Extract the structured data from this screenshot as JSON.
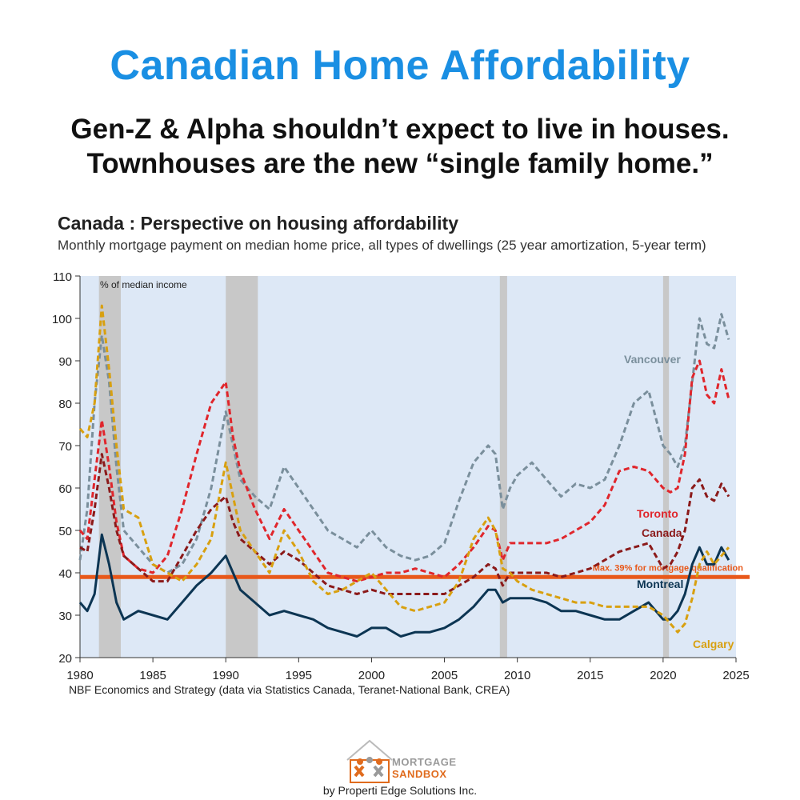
{
  "headline": "Canadian Home Affordability",
  "subheadline_line1": "Gen-Z & Alpha shouldn’t expect to live in houses.",
  "subheadline_line2": "Townhouses are the new “single family home.”",
  "source": "NBF Economics and Strategy (data via Statistics Canada, Teranet-National Bank, CREA)",
  "logo": {
    "line1": "MORTGAGE",
    "line2": "SANDBOX",
    "byline": "by Properti Edge Solutions Inc."
  },
  "colors": {
    "headline": "#1a8fe3",
    "plot_bg": "#dde8f6",
    "recession": "#c8c8c8",
    "threshold": "#e8581a",
    "vancouver": "#7a8f9c",
    "toronto": "#e0262c",
    "canada": "#8b1a1a",
    "montreal": "#0c3553",
    "calgary": "#d8a010"
  },
  "chart_data": {
    "type": "line",
    "title": "Canada : Perspective on housing affordability",
    "subtitle": "Monthly mortgage payment on median home price, all types of dwellings (25 year amortization, 5-year term)",
    "ylabel_note": "% of median income",
    "xlim": [
      1980,
      2025
    ],
    "ylim": [
      20,
      110
    ],
    "x_ticks": [
      1980,
      1985,
      1990,
      1995,
      2000,
      2005,
      2010,
      2015,
      2020,
      2025
    ],
    "y_ticks": [
      20,
      30,
      40,
      50,
      60,
      70,
      80,
      90,
      100,
      110
    ],
    "grid": false,
    "recessions": [
      [
        1981.3,
        1982.8
      ],
      [
        1990.0,
        1992.2
      ],
      [
        2008.8,
        2009.3
      ],
      [
        2020.0,
        2020.4
      ]
    ],
    "threshold": {
      "value": 39,
      "label": "Max. 39% for mortgage qualification"
    },
    "series": [
      {
        "name": "Vancouver",
        "color_key": "vancouver",
        "dashed": true,
        "x": [
          1980,
          1980.5,
          1981,
          1981.5,
          1982,
          1982.5,
          1983,
          1984,
          1985,
          1986,
          1987,
          1988,
          1989,
          1990,
          1990.5,
          1991,
          1992,
          1993,
          1994,
          1995,
          1996,
          1997,
          1998,
          1999,
          2000,
          2001,
          2002,
          2003,
          2004,
          2005,
          2006,
          2007,
          2008,
          2008.5,
          2009,
          2009.5,
          2010,
          2011,
          2012,
          2013,
          2014,
          2015,
          2016,
          2017,
          2018,
          2019,
          2020,
          2020.5,
          2021,
          2021.5,
          2022,
          2022.5,
          2023,
          2023.5,
          2024,
          2024.5
        ],
        "y": [
          43,
          55,
          80,
          96,
          85,
          65,
          50,
          46,
          42,
          40,
          42,
          48,
          60,
          78,
          70,
          62,
          58,
          55,
          65,
          60,
          55,
          50,
          48,
          46,
          50,
          46,
          44,
          43,
          44,
          47,
          57,
          66,
          70,
          68,
          55,
          60,
          63,
          66,
          62,
          58,
          61,
          60,
          62,
          70,
          80,
          83,
          70,
          68,
          65,
          70,
          85,
          100,
          94,
          93,
          101,
          95
        ]
      },
      {
        "name": "Toronto",
        "color_key": "toronto",
        "dashed": true,
        "x": [
          1980,
          1980.5,
          1981,
          1981.5,
          1982,
          1982.5,
          1983,
          1984,
          1985,
          1986,
          1987,
          1988,
          1989,
          1990,
          1990.5,
          1991,
          1992,
          1993,
          1994,
          1995,
          1996,
          1997,
          1998,
          1999,
          2000,
          2001,
          2002,
          2003,
          2004,
          2005,
          2006,
          2007,
          2008,
          2008.5,
          2009,
          2009.5,
          2010,
          2011,
          2012,
          2013,
          2014,
          2015,
          2016,
          2017,
          2018,
          2019,
          2020,
          2020.5,
          2021,
          2021.5,
          2022,
          2022.5,
          2023,
          2023.5,
          2024,
          2024.5
        ],
        "y": [
          50,
          48,
          62,
          76,
          65,
          52,
          44,
          41,
          40,
          44,
          55,
          68,
          80,
          85,
          72,
          64,
          55,
          48,
          55,
          50,
          45,
          40,
          39,
          38,
          39,
          40,
          40,
          41,
          40,
          39,
          42,
          46,
          51,
          50,
          43,
          47,
          47,
          47,
          47,
          48,
          50,
          52,
          56,
          64,
          65,
          64,
          60,
          59,
          60,
          68,
          86,
          90,
          82,
          80,
          88,
          81
        ]
      },
      {
        "name": "Canada",
        "color_key": "canada",
        "dashed": true,
        "x": [
          1980,
          1980.5,
          1981,
          1981.5,
          1982,
          1982.5,
          1983,
          1984,
          1985,
          1986,
          1987,
          1988,
          1989,
          1990,
          1990.5,
          1991,
          1992,
          1993,
          1994,
          1995,
          1996,
          1997,
          1998,
          1999,
          2000,
          2001,
          2002,
          2003,
          2004,
          2005,
          2006,
          2007,
          2008,
          2008.5,
          2009,
          2009.5,
          2010,
          2011,
          2012,
          2013,
          2014,
          2015,
          2016,
          2017,
          2018,
          2019,
          2020,
          2020.5,
          2021,
          2021.5,
          2022,
          2022.5,
          2023,
          2023.5,
          2024,
          2024.5
        ],
        "y": [
          46,
          45,
          55,
          68,
          60,
          50,
          44,
          41,
          38,
          38,
          44,
          50,
          55,
          58,
          52,
          48,
          45,
          42,
          45,
          43,
          40,
          37,
          36,
          35,
          36,
          35,
          35,
          35,
          35,
          35,
          37,
          39,
          42,
          41,
          37,
          40,
          40,
          40,
          40,
          39,
          40,
          41,
          43,
          45,
          46,
          47,
          41,
          42,
          45,
          50,
          60,
          62,
          58,
          57,
          61,
          58
        ]
      },
      {
        "name": "Montreal",
        "color_key": "montreal",
        "dashed": false,
        "x": [
          1980,
          1980.5,
          1981,
          1981.5,
          1982,
          1982.5,
          1983,
          1984,
          1985,
          1986,
          1987,
          1988,
          1989,
          1990,
          1990.5,
          1991,
          1992,
          1993,
          1994,
          1995,
          1996,
          1997,
          1998,
          1999,
          2000,
          2001,
          2002,
          2003,
          2004,
          2005,
          2006,
          2007,
          2008,
          2008.5,
          2009,
          2009.5,
          2010,
          2011,
          2012,
          2013,
          2014,
          2015,
          2016,
          2017,
          2018,
          2019,
          2020,
          2020.5,
          2021,
          2021.5,
          2022,
          2022.5,
          2023,
          2023.5,
          2024,
          2024.5
        ],
        "y": [
          33,
          31,
          35,
          49,
          42,
          33,
          29,
          31,
          30,
          29,
          33,
          37,
          40,
          44,
          40,
          36,
          33,
          30,
          31,
          30,
          29,
          27,
          26,
          25,
          27,
          27,
          25,
          26,
          26,
          27,
          29,
          32,
          36,
          36,
          33,
          34,
          34,
          34,
          33,
          31,
          31,
          30,
          29,
          29,
          31,
          33,
          29,
          29,
          31,
          35,
          42,
          46,
          42,
          42,
          46,
          43
        ]
      },
      {
        "name": "Calgary",
        "color_key": "calgary",
        "dashed": true,
        "x": [
          1980,
          1980.5,
          1981,
          1981.5,
          1982,
          1982.5,
          1983,
          1984,
          1985,
          1986,
          1987,
          1988,
          1989,
          1990,
          1990.5,
          1991,
          1992,
          1993,
          1994,
          1995,
          1996,
          1997,
          1998,
          1999,
          2000,
          2001,
          2002,
          2003,
          2004,
          2005,
          2006,
          2007,
          2008,
          2008.5,
          2009,
          2009.5,
          2010,
          2011,
          2012,
          2013,
          2014,
          2015,
          2016,
          2017,
          2018,
          2019,
          2020,
          2020.5,
          2021,
          2021.5,
          2022,
          2022.5,
          2023,
          2023.5,
          2024,
          2024.5
        ],
        "y": [
          74,
          72,
          80,
          103,
          88,
          70,
          55,
          53,
          42,
          40,
          38,
          42,
          48,
          66,
          58,
          50,
          45,
          40,
          50,
          45,
          38,
          35,
          36,
          38,
          40,
          36,
          32,
          31,
          32,
          33,
          38,
          48,
          53,
          50,
          41,
          40,
          38,
          36,
          35,
          34,
          33,
          33,
          32,
          32,
          32,
          32,
          30,
          28,
          26,
          28,
          34,
          42,
          45,
          42,
          44,
          46
        ]
      }
    ],
    "labels": [
      "Vancouver",
      "Toronto",
      "Canada",
      "Montreal",
      "Calgary"
    ]
  }
}
